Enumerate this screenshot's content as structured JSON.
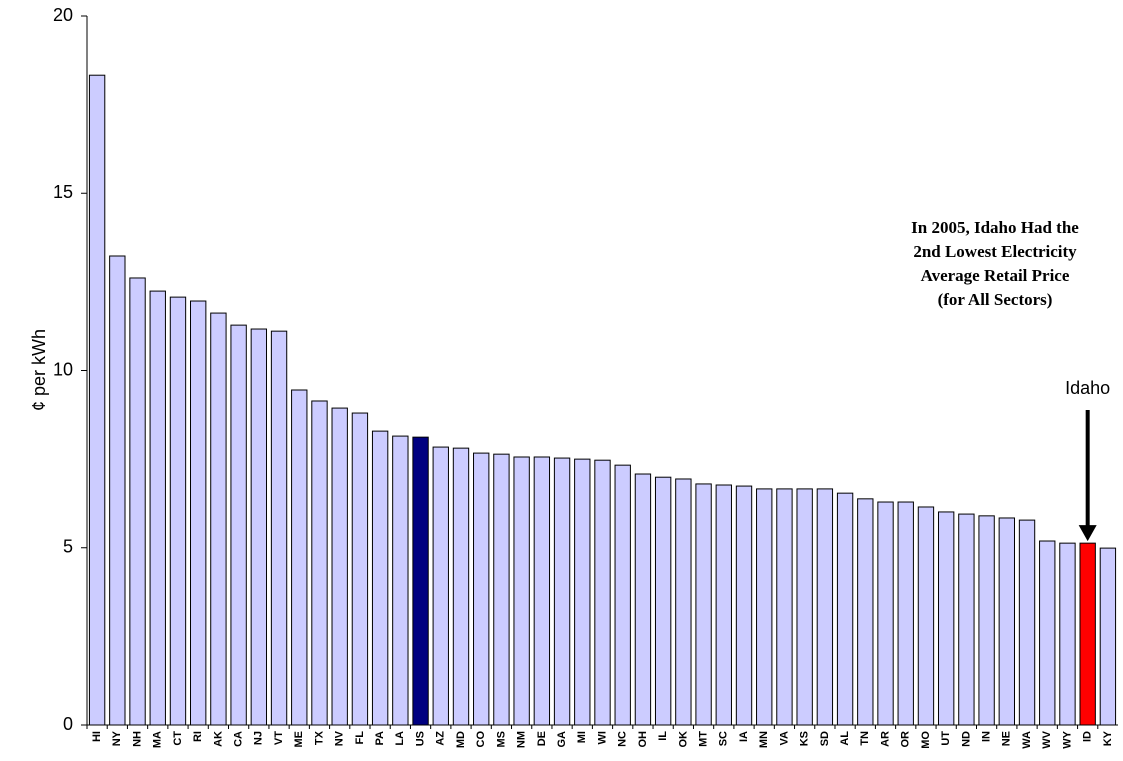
{
  "chart_data": {
    "type": "bar",
    "y_label": "¢ per kWh",
    "categories": [
      "HI",
      "NY",
      "NH",
      "MA",
      "CT",
      "RI",
      "AK",
      "CA",
      "NJ",
      "VT",
      "ME",
      "TX",
      "NV",
      "FL",
      "PA",
      "LA",
      "US",
      "AZ",
      "MD",
      "CO",
      "MS",
      "NM",
      "DE",
      "GA",
      "MI",
      "WI",
      "NC",
      "OH",
      "IL",
      "OK",
      "MT",
      "SC",
      "IA",
      "MN",
      "VA",
      "KS",
      "SD",
      "AL",
      "TN",
      "AR",
      "OR",
      "MO",
      "UT",
      "ND",
      "IN",
      "NE",
      "WA",
      "WV",
      "WY",
      "ID",
      "KY"
    ],
    "values": [
      18.33,
      13.23,
      12.61,
      12.24,
      12.07,
      11.96,
      11.62,
      11.28,
      11.17,
      11.11,
      9.45,
      9.14,
      8.94,
      8.8,
      8.29,
      8.15,
      8.12,
      7.84,
      7.81,
      7.67,
      7.64,
      7.56,
      7.56,
      7.53,
      7.5,
      7.47,
      7.33,
      7.08,
      6.99,
      6.94,
      6.8,
      6.77,
      6.74,
      6.66,
      6.66,
      6.66,
      6.66,
      6.54,
      6.38,
      6.29,
      6.29,
      6.15,
      6.01,
      5.95,
      5.9,
      5.84,
      5.78,
      5.19,
      5.13,
      5.13,
      4.99
    ],
    "colors": [
      "#ccccff",
      "#ccccff",
      "#ccccff",
      "#ccccff",
      "#ccccff",
      "#ccccff",
      "#ccccff",
      "#ccccff",
      "#ccccff",
      "#ccccff",
      "#ccccff",
      "#ccccff",
      "#ccccff",
      "#ccccff",
      "#ccccff",
      "#ccccff",
      "#000080",
      "#ccccff",
      "#ccccff",
      "#ccccff",
      "#ccccff",
      "#ccccff",
      "#ccccff",
      "#ccccff",
      "#ccccff",
      "#ccccff",
      "#ccccff",
      "#ccccff",
      "#ccccff",
      "#ccccff",
      "#ccccff",
      "#ccccff",
      "#ccccff",
      "#ccccff",
      "#ccccff",
      "#ccccff",
      "#ccccff",
      "#ccccff",
      "#ccccff",
      "#ccccff",
      "#ccccff",
      "#ccccff",
      "#ccccff",
      "#ccccff",
      "#ccccff",
      "#ccccff",
      "#ccccff",
      "#ccccff",
      "#ccccff",
      "#ff0000",
      "#ccccff"
    ],
    "ylim": [
      0,
      20
    ],
    "yticks": [
      0,
      5,
      10,
      15,
      20
    ],
    "annotation": [
      "In 2005, Idaho Had the",
      "2nd Lowest Electricity",
      "Average Retail Price",
      "(for All Sectors)"
    ],
    "arrow_label": "Idaho"
  }
}
